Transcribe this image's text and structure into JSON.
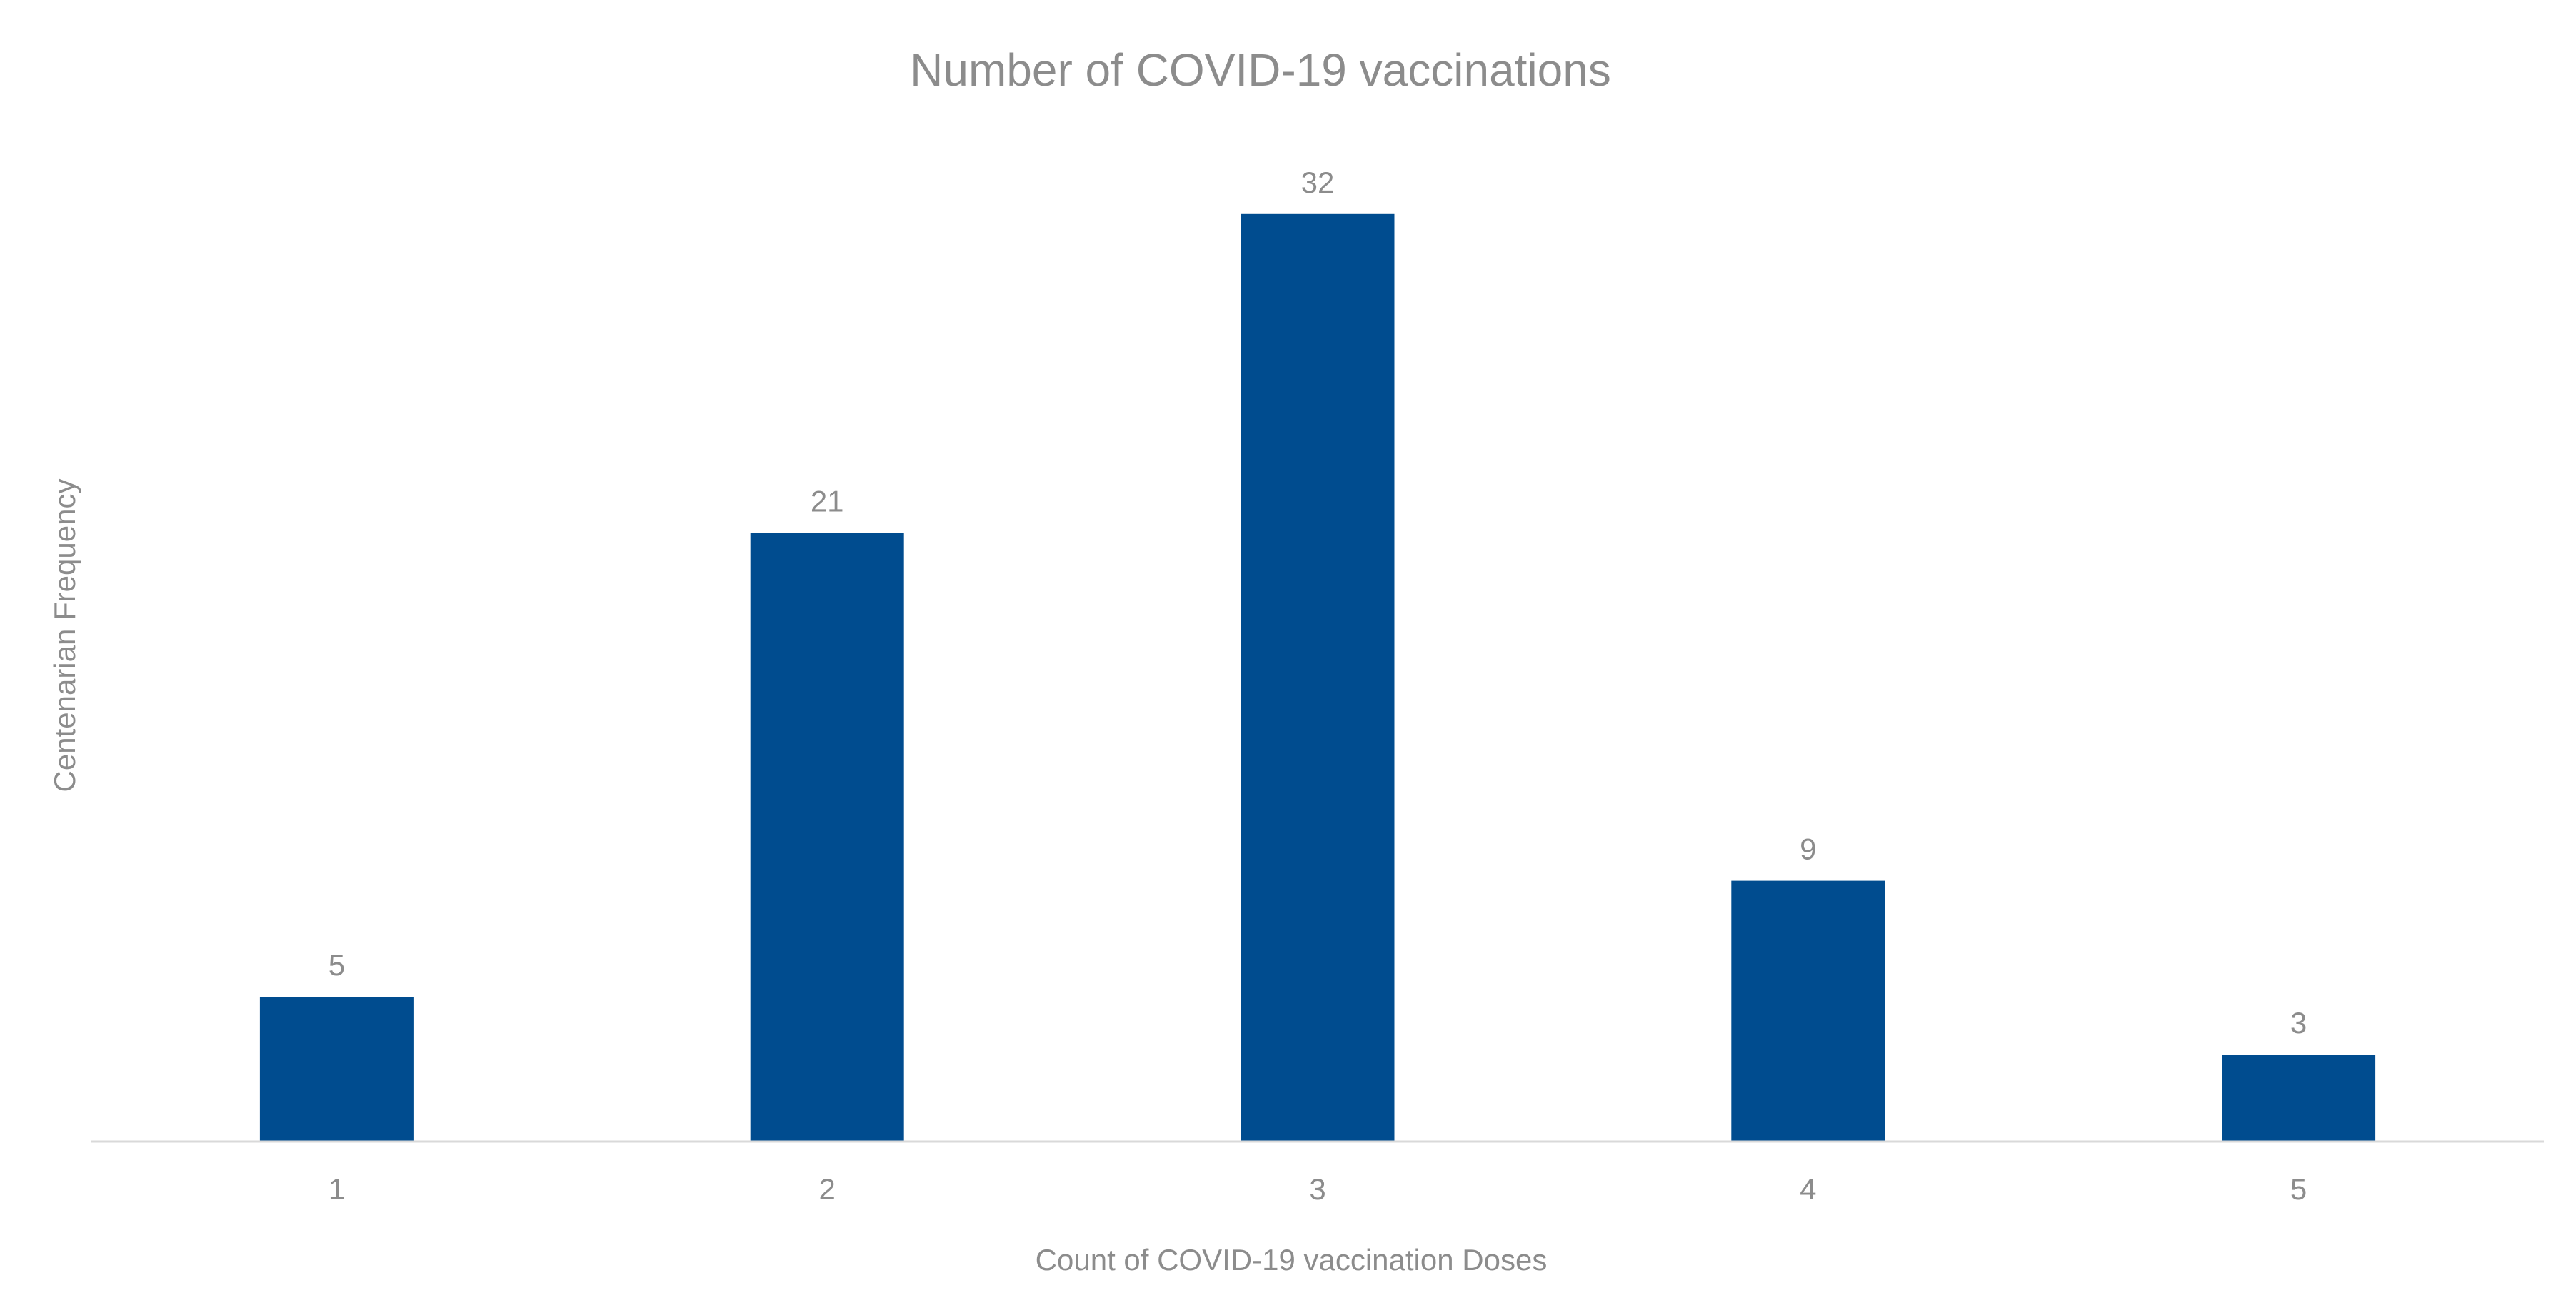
{
  "chart_data": {
    "type": "bar",
    "title": "Number of COVID-19 vaccinations",
    "xlabel": "Count of COVID-19 vaccination Doses",
    "ylabel": "Centenarian Frequency",
    "categories": [
      "1",
      "2",
      "3",
      "4",
      "5"
    ],
    "values": [
      5,
      21,
      32,
      9,
      3
    ],
    "data_labels": [
      "5",
      "21",
      "32",
      "9",
      "3"
    ],
    "ylim": [
      0,
      35
    ],
    "grid": false,
    "legend": "none",
    "colors": {
      "bar": "#004c8f",
      "axis": "#d9d9d9",
      "text": "#8c8c8c"
    }
  }
}
